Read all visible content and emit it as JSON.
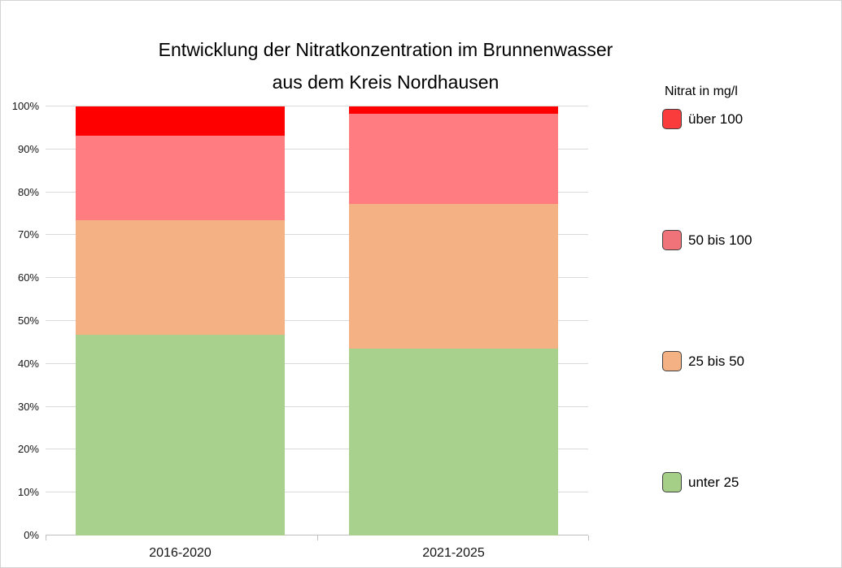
{
  "window": {
    "background": "#ffffff",
    "border_color": "#d4d4d4"
  },
  "chart_data": {
    "type": "bar",
    "stacked": true,
    "title_lines": [
      "Entwicklung der Nitratkonzentration im Brunnenwasser",
      "aus dem Kreis Nordhausen"
    ],
    "categories": [
      "2016-2020",
      "2021-2025"
    ],
    "series": [
      {
        "name": "unter 25",
        "color": "#a9d18e",
        "values": [
          46.8,
          43.6
        ]
      },
      {
        "name": "25 bis 50",
        "color": "#f4b183",
        "values": [
          26.6,
          33.7
        ]
      },
      {
        "name": "50 bis 100",
        "color": "#ff7c80",
        "values": [
          19.8,
          21.0
        ]
      },
      {
        "name": "über 100",
        "color": "#ff0000",
        "values": [
          6.8,
          1.7
        ]
      }
    ],
    "xlabel": "",
    "ylabel": "",
    "ylim": [
      0,
      100
    ],
    "y_ticks": [
      "0%",
      "10%",
      "20%",
      "30%",
      "40%",
      "50%",
      "60%",
      "70%",
      "80%",
      "90%",
      "100%"
    ],
    "grid": true,
    "gridline_color": "#d9d9d9",
    "axis_line_color": "#bfbfbf",
    "legend_position": "right"
  },
  "legend": {
    "title": "Nitrat in mg/l",
    "swatch_border_color": "#3f3f3f",
    "items": [
      {
        "label": "über 100",
        "swatch_color": "#fa3c3c"
      },
      {
        "label": "50 bis 100",
        "swatch_color": "#f0737a"
      },
      {
        "label": "25 bis 50",
        "swatch_color": "#f4b183"
      },
      {
        "label": "unter 25",
        "swatch_color": "#a5ce87"
      }
    ]
  }
}
